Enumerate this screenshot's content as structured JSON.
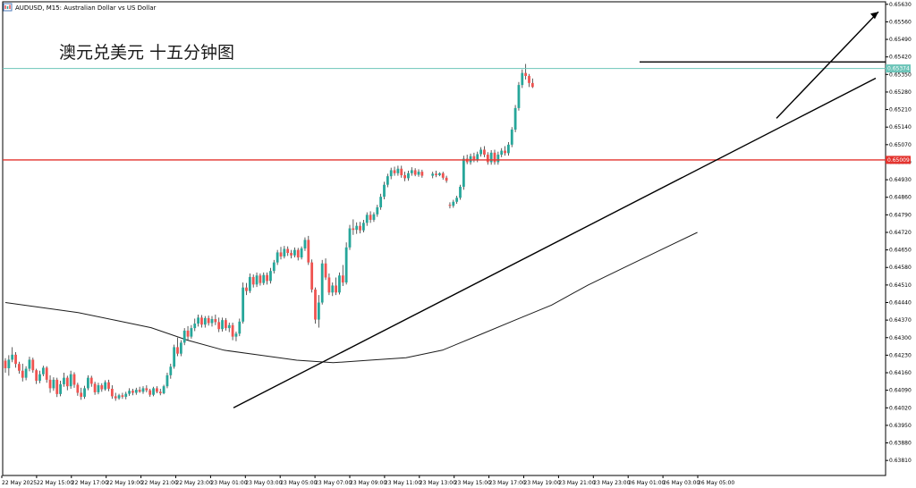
{
  "window": {
    "symbol_caption": "AUDUSD, M15:  Australian Dollar vs US Dollar"
  },
  "annotation": {
    "title": "澳元兑美元 十五分钟图"
  },
  "colors": {
    "bull": "#26a69a",
    "bear": "#ef5350",
    "wick": "#333333",
    "ma_line": "#1c1c1c",
    "bid_line": "#6cc4b8",
    "support_line": "#e3342f",
    "trendline": "#000000",
    "grid": "#e6e6e6"
  },
  "chart_data": {
    "type": "candlestick",
    "symbol": "AUDUSD",
    "timeframe": "M15",
    "ylim": [
      0.6375,
      0.6564
    ],
    "y_ticks": [
      "0.65630",
      "0.65560",
      "0.65490",
      "0.65420",
      "0.65350",
      "0.65280",
      "0.65210",
      "0.65140",
      "0.65070",
      "0.65000",
      "0.64930",
      "0.64860",
      "0.64790",
      "0.64720",
      "0.64650",
      "0.64580",
      "0.64510",
      "0.64440",
      "0.64370",
      "0.64300",
      "0.64230",
      "0.64160",
      "0.64090",
      "0.64020",
      "0.63950",
      "0.63880",
      "0.63810"
    ],
    "x_ticks": [
      "22 May 2025",
      "22 May 15:00",
      "22 May 17:00",
      "22 May 19:00",
      "22 May 21:00",
      "22 May 23:00",
      "23 May 01:00",
      "23 May 03:00",
      "23 May 05:00",
      "23 May 07:00",
      "23 May 09:00",
      "23 May 11:00",
      "23 May 13:00",
      "23 May 15:00",
      "23 May 17:00",
      "23 May 19:00",
      "23 May 21:00",
      "23 May 23:00",
      "26 May 01:00",
      "26 May 03:00",
      "26 May 05:00"
    ],
    "current_price": "0.65374",
    "support_level": "0.65009",
    "resistance_level": 0.654,
    "moving_average": [
      [
        0,
        0.6444
      ],
      [
        15,
        0.6442
      ],
      [
        30,
        0.644
      ],
      [
        45,
        0.6437
      ],
      [
        60,
        0.6434
      ],
      [
        75,
        0.6429
      ],
      [
        90,
        0.6425
      ],
      [
        105,
        0.6423
      ],
      [
        120,
        0.6421
      ],
      [
        135,
        0.642
      ],
      [
        150,
        0.6421
      ],
      [
        165,
        0.6422
      ],
      [
        180,
        0.6425
      ],
      [
        195,
        0.6431
      ],
      [
        210,
        0.6437
      ],
      [
        225,
        0.6443
      ],
      [
        240,
        0.6451
      ],
      [
        255,
        0.6458
      ],
      [
        270,
        0.6465
      ],
      [
        285,
        0.6472
      ]
    ],
    "trendlines": [
      {
        "from": [
          94,
          0.6402
        ],
        "to": [
          355,
          0.65335
        ]
      },
      {
        "from": [
          315,
          0.65175
        ],
        "to": [
          358,
          0.656
        ]
      }
    ],
    "candles": [
      [
        0.64208,
        0.64218,
        0.6416,
        0.64178
      ],
      [
        0.64178,
        0.6423,
        0.64148,
        0.64212
      ],
      [
        0.64212,
        0.64262,
        0.64202,
        0.64232
      ],
      [
        0.64232,
        0.64242,
        0.6418,
        0.64195
      ],
      [
        0.64195,
        0.64204,
        0.64156,
        0.64168
      ],
      [
        0.64168,
        0.64196,
        0.64125,
        0.6414
      ],
      [
        0.6414,
        0.64186,
        0.6413,
        0.64176
      ],
      [
        0.64176,
        0.64224,
        0.64166,
        0.64212
      ],
      [
        0.64212,
        0.6422,
        0.6416,
        0.6417
      ],
      [
        0.6417,
        0.64176,
        0.64115,
        0.64128
      ],
      [
        0.64128,
        0.64168,
        0.64118,
        0.64154
      ],
      [
        0.64154,
        0.64188,
        0.64146,
        0.6418
      ],
      [
        0.6418,
        0.64186,
        0.6412,
        0.64132
      ],
      [
        0.64132,
        0.6415,
        0.6408,
        0.64098
      ],
      [
        0.64098,
        0.64142,
        0.64088,
        0.64132
      ],
      [
        0.64132,
        0.6414,
        0.64063,
        0.64075
      ],
      [
        0.64075,
        0.64128,
        0.64066,
        0.64114
      ],
      [
        0.64114,
        0.6416,
        0.64104,
        0.6414
      ],
      [
        0.6414,
        0.64148,
        0.6409,
        0.64106
      ],
      [
        0.64106,
        0.64168,
        0.64096,
        0.64154
      ],
      [
        0.64154,
        0.64162,
        0.641,
        0.64112
      ],
      [
        0.64112,
        0.6412,
        0.64068,
        0.6408
      ],
      [
        0.6408,
        0.641,
        0.64052,
        0.64064
      ],
      [
        0.64064,
        0.64108,
        0.64056,
        0.64098
      ],
      [
        0.64098,
        0.6415,
        0.6409,
        0.6414
      ],
      [
        0.6414,
        0.64148,
        0.64104,
        0.64116
      ],
      [
        0.64116,
        0.64124,
        0.64072,
        0.64082
      ],
      [
        0.64082,
        0.6412,
        0.64074,
        0.6411
      ],
      [
        0.6411,
        0.64118,
        0.64084,
        0.64094
      ],
      [
        0.64094,
        0.6413,
        0.64088,
        0.64122
      ],
      [
        0.64122,
        0.64132,
        0.64086,
        0.64096
      ],
      [
        0.64096,
        0.6411,
        0.64056,
        0.64066
      ],
      [
        0.64066,
        0.6408,
        0.64048,
        0.64058
      ],
      [
        0.64058,
        0.64076,
        0.64052,
        0.6407
      ],
      [
        0.6407,
        0.6408,
        0.64056,
        0.64064
      ],
      [
        0.64064,
        0.64084,
        0.64054,
        0.64076
      ],
      [
        0.64076,
        0.64098,
        0.64068,
        0.64088
      ],
      [
        0.64088,
        0.64096,
        0.6407,
        0.6408
      ],
      [
        0.6408,
        0.641,
        0.64072,
        0.64092
      ],
      [
        0.64092,
        0.64104,
        0.6408,
        0.64084
      ],
      [
        0.64084,
        0.64106,
        0.64076,
        0.64098
      ],
      [
        0.64098,
        0.6411,
        0.64082,
        0.6409
      ],
      [
        0.6409,
        0.64096,
        0.64064,
        0.64072
      ],
      [
        0.64072,
        0.64104,
        0.64066,
        0.64098
      ],
      [
        0.64098,
        0.64106,
        0.64078,
        0.64084
      ],
      [
        0.64084,
        0.64096,
        0.6407,
        0.64078
      ],
      [
        0.64078,
        0.64112,
        0.64074,
        0.64106
      ],
      [
        0.64106,
        0.6416,
        0.64098,
        0.6415
      ],
      [
        0.6415,
        0.64196,
        0.64136,
        0.64184
      ],
      [
        0.64184,
        0.64272,
        0.64176,
        0.64262
      ],
      [
        0.64262,
        0.643,
        0.64226,
        0.64236
      ],
      [
        0.64236,
        0.6429,
        0.64226,
        0.6428
      ],
      [
        0.6428,
        0.64338,
        0.6427,
        0.64328
      ],
      [
        0.64328,
        0.64346,
        0.6429,
        0.64304
      ],
      [
        0.64304,
        0.6435,
        0.64296,
        0.64338
      ],
      [
        0.64338,
        0.64376,
        0.64326,
        0.64356
      ],
      [
        0.64356,
        0.64392,
        0.64344,
        0.6438
      ],
      [
        0.6438,
        0.6439,
        0.6434,
        0.64352
      ],
      [
        0.64352,
        0.64386,
        0.6434,
        0.64378
      ],
      [
        0.64378,
        0.64388,
        0.64348,
        0.64358
      ],
      [
        0.64358,
        0.64386,
        0.64344,
        0.64374
      ],
      [
        0.64374,
        0.64392,
        0.6435,
        0.64362
      ],
      [
        0.64362,
        0.6438,
        0.64322,
        0.64334
      ],
      [
        0.64334,
        0.6438,
        0.64324,
        0.6437
      ],
      [
        0.6437,
        0.64378,
        0.64328,
        0.64338
      ],
      [
        0.64338,
        0.6436,
        0.64322,
        0.6435
      ],
      [
        0.6435,
        0.6436,
        0.6429,
        0.64304
      ],
      [
        0.64304,
        0.64324,
        0.64286,
        0.64316
      ],
      [
        0.64316,
        0.64376,
        0.64306,
        0.64364
      ],
      [
        0.64364,
        0.6452,
        0.64356,
        0.645
      ],
      [
        0.645,
        0.64518,
        0.6447,
        0.64486
      ],
      [
        0.64486,
        0.64556,
        0.64478,
        0.64542
      ],
      [
        0.64542,
        0.64552,
        0.645,
        0.64512
      ],
      [
        0.64512,
        0.6456,
        0.64502,
        0.64548
      ],
      [
        0.64548,
        0.64556,
        0.64508,
        0.64518
      ],
      [
        0.64518,
        0.6456,
        0.6451,
        0.6455
      ],
      [
        0.6455,
        0.6456,
        0.64512,
        0.64526
      ],
      [
        0.64526,
        0.64578,
        0.64516,
        0.64566
      ],
      [
        0.64566,
        0.6461,
        0.64556,
        0.646
      ],
      [
        0.646,
        0.6465,
        0.6459,
        0.6464
      ],
      [
        0.6464,
        0.64662,
        0.64612,
        0.64624
      ],
      [
        0.64624,
        0.64666,
        0.64616,
        0.64654
      ],
      [
        0.64654,
        0.64664,
        0.64626,
        0.64638
      ],
      [
        0.64638,
        0.6465,
        0.64616,
        0.64628
      ],
      [
        0.64628,
        0.6466,
        0.6462,
        0.6465
      ],
      [
        0.6465,
        0.64658,
        0.64608,
        0.6462
      ],
      [
        0.6462,
        0.64664,
        0.64612,
        0.64656
      ],
      [
        0.64656,
        0.647,
        0.64646,
        0.6469
      ],
      [
        0.6469,
        0.64706,
        0.6459,
        0.646
      ],
      [
        0.646,
        0.64612,
        0.6448,
        0.64492
      ],
      [
        0.64492,
        0.645,
        0.64356,
        0.64372
      ],
      [
        0.64372,
        0.6447,
        0.6434,
        0.6444
      ],
      [
        0.6444,
        0.6461,
        0.64432,
        0.64596
      ],
      [
        0.64596,
        0.64616,
        0.6453,
        0.6454
      ],
      [
        0.6454,
        0.64556,
        0.6447,
        0.6448
      ],
      [
        0.6448,
        0.6452,
        0.64466,
        0.64508
      ],
      [
        0.64508,
        0.6454,
        0.6447,
        0.6448
      ],
      [
        0.6448,
        0.6456,
        0.64472,
        0.64548
      ],
      [
        0.64548,
        0.6459,
        0.64506,
        0.6452
      ],
      [
        0.6452,
        0.6468,
        0.64512,
        0.6466
      ],
      [
        0.6466,
        0.6475,
        0.6465,
        0.64736
      ],
      [
        0.64736,
        0.64772,
        0.6471,
        0.6473
      ],
      [
        0.6473,
        0.6476,
        0.64714,
        0.64746
      ],
      [
        0.64746,
        0.64762,
        0.64716,
        0.64728
      ],
      [
        0.64728,
        0.6477,
        0.6472,
        0.64758
      ],
      [
        0.64758,
        0.648,
        0.64746,
        0.6479
      ],
      [
        0.6479,
        0.64804,
        0.64758,
        0.6477
      ],
      [
        0.6477,
        0.648,
        0.64762,
        0.64792
      ],
      [
        0.64792,
        0.6483,
        0.64782,
        0.6482
      ],
      [
        0.6482,
        0.64874,
        0.6481,
        0.64862
      ],
      [
        0.64862,
        0.64922,
        0.64852,
        0.6491
      ],
      [
        0.6491,
        0.64954,
        0.649,
        0.64944
      ],
      [
        0.64944,
        0.64978,
        0.64932,
        0.64968
      ],
      [
        0.64968,
        0.64982,
        0.64946,
        0.64956
      ],
      [
        0.64956,
        0.64986,
        0.64946,
        0.64974
      ],
      [
        0.64974,
        0.64986,
        0.64938,
        0.64948
      ],
      [
        0.64948,
        0.64962,
        0.64924,
        0.64936
      ],
      [
        0.64936,
        0.64966,
        0.64926,
        0.64956
      ],
      [
        0.64956,
        0.6498,
        0.64946,
        0.64968
      ],
      [
        0.64968,
        0.64976,
        0.64944,
        0.6495
      ],
      [
        0.6495,
        0.64972,
        0.64942,
        0.64962
      ],
      [
        0.64962,
        0.6497,
        0.64938,
        0.64946
      ],
      [
        0.64946,
        0.64962,
        0.64936,
        0.64954
      ],
      [
        0.64954,
        0.64966,
        0.6494,
        0.64948
      ],
      [
        0.64948,
        0.6496,
        0.64944,
        0.64956
      ],
      [
        0.64956,
        0.64962,
        0.6493,
        0.64938
      ],
      [
        0.64938,
        0.64946,
        0.64918,
        0.64926
      ],
      [
        0.6483,
        0.6484,
        0.64816,
        0.64826
      ],
      [
        0.64826,
        0.6485,
        0.64818,
        0.64842
      ],
      [
        0.64842,
        0.64866,
        0.64834,
        0.64858
      ],
      [
        0.64858,
        0.6491,
        0.6485,
        0.64902
      ],
      [
        0.64902,
        0.65026,
        0.6489,
        0.65014
      ],
      [
        0.65014,
        0.6503,
        0.64992,
        0.65
      ],
      [
        0.65,
        0.65034,
        0.6499,
        0.65024
      ],
      [
        0.65024,
        0.65038,
        0.65,
        0.6501
      ],
      [
        0.6501,
        0.65042,
        0.65,
        0.65032
      ],
      [
        0.65032,
        0.6506,
        0.65022,
        0.6505
      ],
      [
        0.6505,
        0.65064,
        0.6502,
        0.6503
      ],
      [
        0.6503,
        0.6504,
        0.6499,
        0.65
      ],
      [
        0.65,
        0.65048,
        0.6499,
        0.65038
      ],
      [
        0.65038,
        0.6505,
        0.6499,
        0.65
      ],
      [
        0.65,
        0.65042,
        0.6499,
        0.6503
      ],
      [
        0.6503,
        0.65056,
        0.6502,
        0.65046
      ],
      [
        0.65046,
        0.65064,
        0.65026,
        0.65036
      ],
      [
        0.65036,
        0.6508,
        0.65026,
        0.6507
      ],
      [
        0.6507,
        0.6514,
        0.6506,
        0.6513
      ],
      [
        0.6513,
        0.65228,
        0.6512,
        0.65216
      ],
      [
        0.65216,
        0.6532,
        0.65206,
        0.65308
      ],
      [
        0.65308,
        0.6537,
        0.65296,
        0.65356
      ],
      [
        0.65356,
        0.65392,
        0.6533,
        0.65344
      ],
      [
        0.65344,
        0.65352,
        0.653,
        0.65316
      ],
      [
        0.65316,
        0.65334,
        0.65296,
        0.653
      ]
    ]
  }
}
